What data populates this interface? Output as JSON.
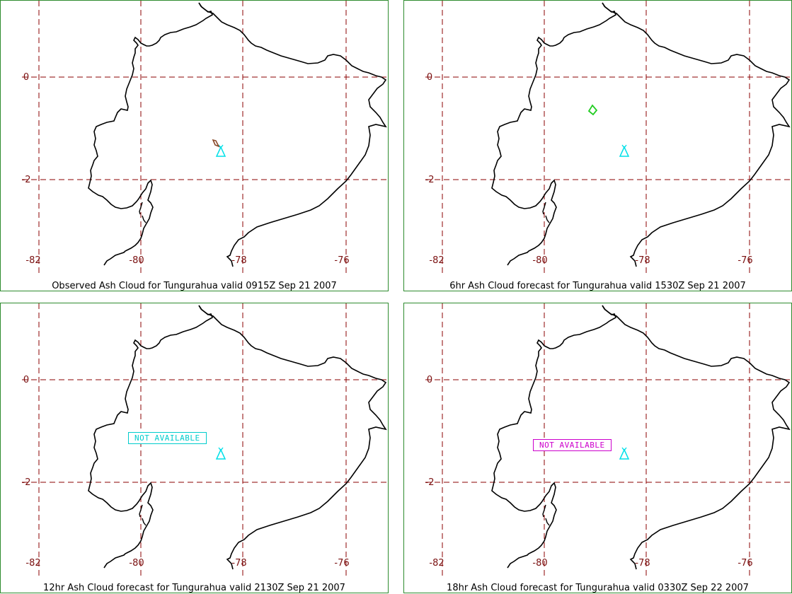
{
  "colors": {
    "frame": "#2e8b2e",
    "grid": "#8b0000",
    "tick": "#7a1010",
    "coast": "#000000",
    "volcano": "#00e0e8",
    "observed_cloud": "#8b4a2a",
    "forecast_6hr_cloud": "#22cc22",
    "na_12hr": "#00cccc",
    "na_18hr": "#cc00cc"
  },
  "axis": {
    "lat_labels": [
      "0",
      "-2"
    ],
    "lon_labels": [
      "-82",
      "-80",
      "-78",
      "-76"
    ]
  },
  "panels": [
    {
      "id": "p1",
      "caption": "Observed Ash Cloud for Tungurahua valid 0915Z Sep 21 2007",
      "cloud": "observed",
      "not_available": ""
    },
    {
      "id": "p2",
      "caption": "6hr Ash Cloud forecast for Tungurahua valid 1530Z Sep 21 2007",
      "cloud": "forecast",
      "not_available": ""
    },
    {
      "id": "p3",
      "caption": "12hr Ash Cloud forecast for Tungurahua valid 2130Z Sep 21 2007",
      "cloud": "none",
      "not_available": "NOT AVAILABLE"
    },
    {
      "id": "p4",
      "caption": "18hr Ash Cloud forecast for Tungurahua valid 0330Z Sep 22 2007",
      "cloud": "none",
      "not_available": "NOT AVAILABLE"
    }
  ]
}
